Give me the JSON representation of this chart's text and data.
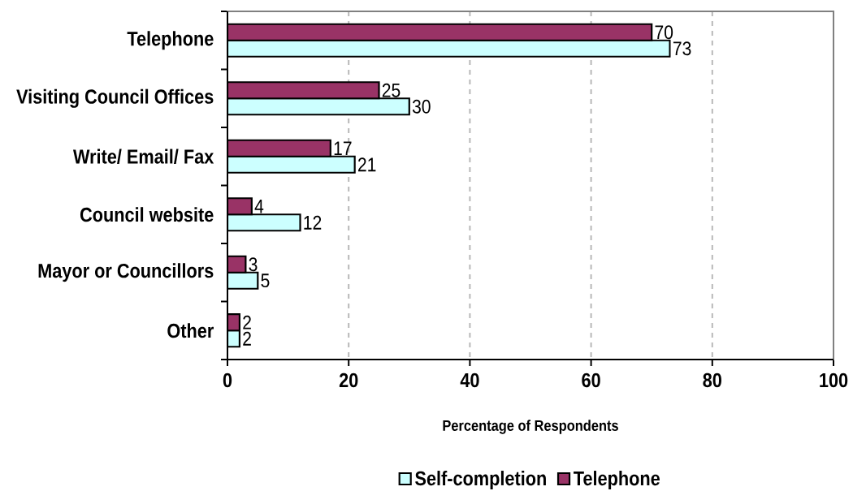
{
  "chart_data": {
    "type": "bar",
    "orientation": "horizontal",
    "categories": [
      "Telephone",
      "Visiting Council Offices",
      "Write/ Email/ Fax",
      "Council website",
      "Mayor or Councillors",
      "Other"
    ],
    "series": [
      {
        "name": "Self-completion",
        "color": "#ccffff",
        "values": [
          73,
          30,
          21,
          12,
          5,
          2
        ]
      },
      {
        "name": "Telephone",
        "color": "#993366",
        "values": [
          70,
          25,
          17,
          4,
          3,
          2
        ]
      }
    ],
    "xlabel": "Percentage of Respondents",
    "xlim": [
      0,
      100
    ],
    "xticks": [
      0,
      20,
      40,
      60,
      80,
      100
    ],
    "grid": "x",
    "legend": "bottom",
    "data_labels": true
  }
}
